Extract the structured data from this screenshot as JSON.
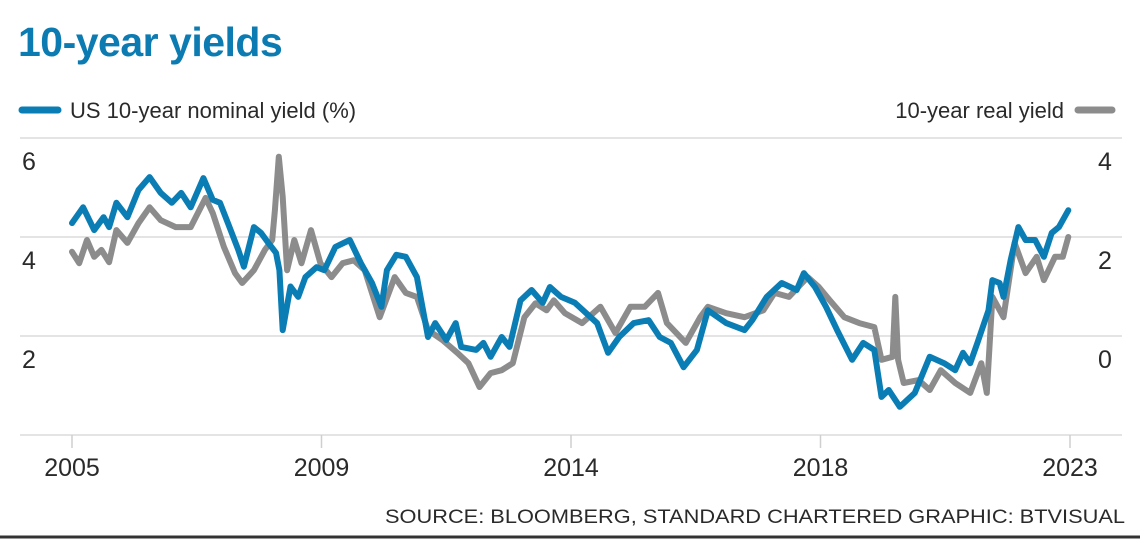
{
  "chart_data": {
    "type": "line",
    "title": "10-year yields",
    "source": "SOURCE: BLOOMBERG, STANDARD CHARTERED   GRAPHIC: BTVISUAL",
    "x_ticks": [
      {
        "value": 2005.0,
        "label": "2005"
      },
      {
        "value": 2009.5,
        "label": "2009"
      },
      {
        "value": 2014.0,
        "label": "2014"
      },
      {
        "value": 2018.5,
        "label": "2018"
      },
      {
        "value": 2023.0,
        "label": "2023"
      }
    ],
    "xlim": [
      2005,
      2023
    ],
    "y_left": {
      "ticks": [
        "6",
        "4",
        "2"
      ],
      "ylim": [
        0,
        6
      ]
    },
    "y_right": {
      "ticks": [
        "4",
        "2",
        "0"
      ],
      "ylim": [
        -2,
        4
      ]
    },
    "grid": true,
    "legend": {
      "left": "US 10-year nominal yield (%)",
      "right": "10-year real yield"
    },
    "colors": {
      "nominal": "#0b7db5",
      "real": "#8c8c8c",
      "title": "#0b7bb2"
    },
    "series": [
      {
        "name": "US 10-year nominal yield (%)",
        "axis": "left",
        "x": [
          2005.0,
          2005.2,
          2005.4,
          2005.57,
          2005.67,
          2005.8,
          2006.0,
          2006.2,
          2006.4,
          2006.6,
          2006.8,
          2006.97,
          2007.14,
          2007.37,
          2007.54,
          2007.67,
          2007.84,
          2008.0,
          2008.1,
          2008.28,
          2008.41,
          2008.54,
          2008.68,
          2008.74,
          2008.8,
          2008.94,
          2009.08,
          2009.21,
          2009.41,
          2009.55,
          2009.75,
          2010.01,
          2010.21,
          2010.41,
          2010.58,
          2010.68,
          2010.85,
          2011.02,
          2011.22,
          2011.42,
          2011.55,
          2011.75,
          2011.92,
          2012.02,
          2012.29,
          2012.42,
          2012.55,
          2012.75,
          2012.89,
          2013.09,
          2013.29,
          2013.49,
          2013.62,
          2013.82,
          2014.07,
          2014.47,
          2014.67,
          2014.87,
          2015.13,
          2015.4,
          2015.6,
          2015.8,
          2016.03,
          2016.27,
          2016.47,
          2016.8,
          2017.13,
          2017.27,
          2017.53,
          2017.8,
          2018.07,
          2018.2,
          2018.4,
          2018.6,
          2018.8,
          2019.07,
          2019.27,
          2019.47,
          2019.6,
          2019.73,
          2019.93,
          2020.2,
          2020.47,
          2020.73,
          2020.93,
          2021.07,
          2021.2,
          2021.33,
          2021.53,
          2021.6,
          2021.73,
          2021.8,
          2021.93,
          2022.07,
          2022.2,
          2022.37,
          2022.53,
          2022.67,
          2022.8,
          2022.97
        ],
        "y": [
          4.28,
          4.6,
          4.14,
          4.4,
          4.2,
          4.69,
          4.4,
          4.95,
          5.21,
          4.89,
          4.69,
          4.89,
          4.6,
          5.19,
          4.75,
          4.69,
          4.2,
          3.74,
          3.4,
          4.2,
          4.08,
          3.88,
          3.68,
          3.33,
          2.12,
          3.0,
          2.79,
          3.19,
          3.39,
          3.33,
          3.8,
          3.94,
          3.47,
          3.07,
          2.59,
          3.33,
          3.64,
          3.6,
          3.19,
          1.98,
          2.26,
          1.92,
          2.26,
          1.78,
          1.72,
          1.86,
          1.58,
          1.98,
          1.78,
          2.72,
          2.93,
          2.67,
          2.99,
          2.79,
          2.67,
          2.26,
          1.66,
          1.98,
          2.26,
          2.32,
          1.98,
          1.86,
          1.37,
          1.72,
          2.52,
          2.26,
          2.12,
          2.32,
          2.79,
          3.07,
          2.93,
          3.27,
          2.99,
          2.59,
          2.12,
          1.52,
          1.86,
          1.72,
          0.77,
          0.91,
          0.57,
          0.85,
          1.58,
          1.45,
          1.31,
          1.66,
          1.45,
          1.86,
          2.52,
          3.13,
          3.07,
          2.79,
          3.54,
          4.2,
          3.94,
          3.94,
          3.6,
          4.08,
          4.2,
          4.54
        ]
      },
      {
        "name": "10-year real yield",
        "axis": "right",
        "x": [
          2005.0,
          2005.13,
          2005.27,
          2005.4,
          2005.53,
          2005.67,
          2005.8,
          2006.0,
          2006.2,
          2006.4,
          2006.6,
          2006.87,
          2007.14,
          2007.41,
          2007.54,
          2007.74,
          2007.94,
          2008.07,
          2008.28,
          2008.48,
          2008.61,
          2008.66,
          2008.73,
          2008.8,
          2008.88,
          2009.01,
          2009.14,
          2009.31,
          2009.48,
          2009.68,
          2009.88,
          2010.08,
          2010.28,
          2010.55,
          2010.82,
          2011.02,
          2011.22,
          2011.42,
          2011.68,
          2011.95,
          2012.15,
          2012.35,
          2012.55,
          2012.75,
          2012.95,
          2013.16,
          2013.36,
          2013.56,
          2013.69,
          2013.89,
          2014.2,
          2014.53,
          2014.8,
          2015.07,
          2015.33,
          2015.57,
          2015.73,
          2016.07,
          2016.33,
          2016.47,
          2016.8,
          2017.13,
          2017.47,
          2017.67,
          2017.93,
          2018.27,
          2018.47,
          2018.67,
          2018.93,
          2019.2,
          2019.47,
          2019.6,
          2019.8,
          2019.85,
          2019.9,
          2020.0,
          2020.27,
          2020.47,
          2020.67,
          2020.93,
          2021.2,
          2021.4,
          2021.5,
          2021.6,
          2021.8,
          2022.0,
          2022.2,
          2022.4,
          2022.53,
          2022.73,
          2022.87,
          2022.97
        ],
        "y": [
          1.7,
          1.47,
          1.94,
          1.6,
          1.74,
          1.49,
          2.14,
          1.88,
          2.28,
          2.6,
          2.34,
          2.2,
          2.2,
          2.79,
          2.48,
          1.8,
          1.27,
          1.07,
          1.33,
          1.74,
          1.94,
          2.54,
          3.62,
          2.81,
          1.33,
          1.94,
          1.47,
          2.14,
          1.47,
          1.19,
          1.47,
          1.53,
          1.33,
          0.38,
          1.19,
          0.87,
          0.79,
          0.12,
          -0.08,
          -0.34,
          -0.55,
          -1.03,
          -0.75,
          -0.69,
          -0.55,
          0.38,
          0.66,
          0.52,
          0.72,
          0.46,
          0.26,
          0.59,
          0.06,
          0.59,
          0.59,
          0.87,
          0.26,
          -0.14,
          0.38,
          0.59,
          0.46,
          0.38,
          0.52,
          0.87,
          0.79,
          1.19,
          0.99,
          0.72,
          0.38,
          0.26,
          0.18,
          -0.48,
          -0.42,
          0.79,
          -0.48,
          -0.95,
          -0.89,
          -1.09,
          -0.69,
          -0.95,
          -1.15,
          -0.55,
          -1.15,
          0.79,
          0.38,
          1.88,
          1.27,
          1.6,
          1.13,
          1.6,
          1.6,
          2.0
        ]
      }
    ]
  }
}
